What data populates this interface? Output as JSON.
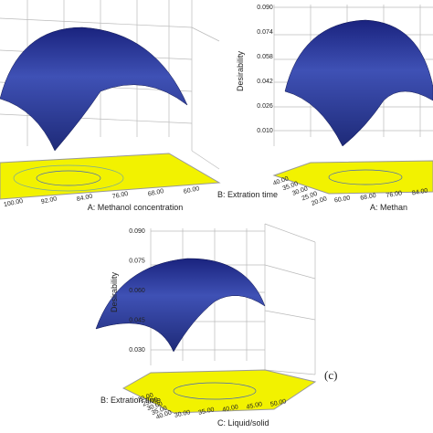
{
  "panels": [
    {
      "x_axis": {
        "label": "A: Methanol concentration",
        "ticks": [
          "100.00",
          "92.00",
          "84.00",
          "76.00",
          "68.00",
          "60.00"
        ]
      }
    },
    {
      "z_axis": {
        "label": "Desirability",
        "ticks": [
          "0.090",
          "0.074",
          "0.058",
          "0.042",
          "0.026",
          "0.010"
        ]
      },
      "y_axis": {
        "label": "B: Extration time",
        "ticks": [
          "40.00",
          "35.00",
          "30.00",
          "25.00",
          "20.00"
        ]
      },
      "x_axis": {
        "label": "A: Methan",
        "ticks": [
          "60.00",
          "68.00",
          "76.00",
          "84.00"
        ]
      }
    },
    {
      "z_axis": {
        "label": "Desirability",
        "ticks": [
          "0.090",
          "0.075",
          "0.060",
          "0.045",
          "0.030"
        ]
      },
      "y_axis": {
        "label": "B: Extration time",
        "ticks": [
          "20.00",
          "25.00",
          "30.00",
          "35.00",
          "40.00"
        ]
      },
      "x_axis": {
        "label": "C: Liquid/solid",
        "ticks": [
          "30.00",
          "35.00",
          "40.00",
          "45.00",
          "50.00"
        ]
      },
      "tag": "(c)"
    }
  ]
}
